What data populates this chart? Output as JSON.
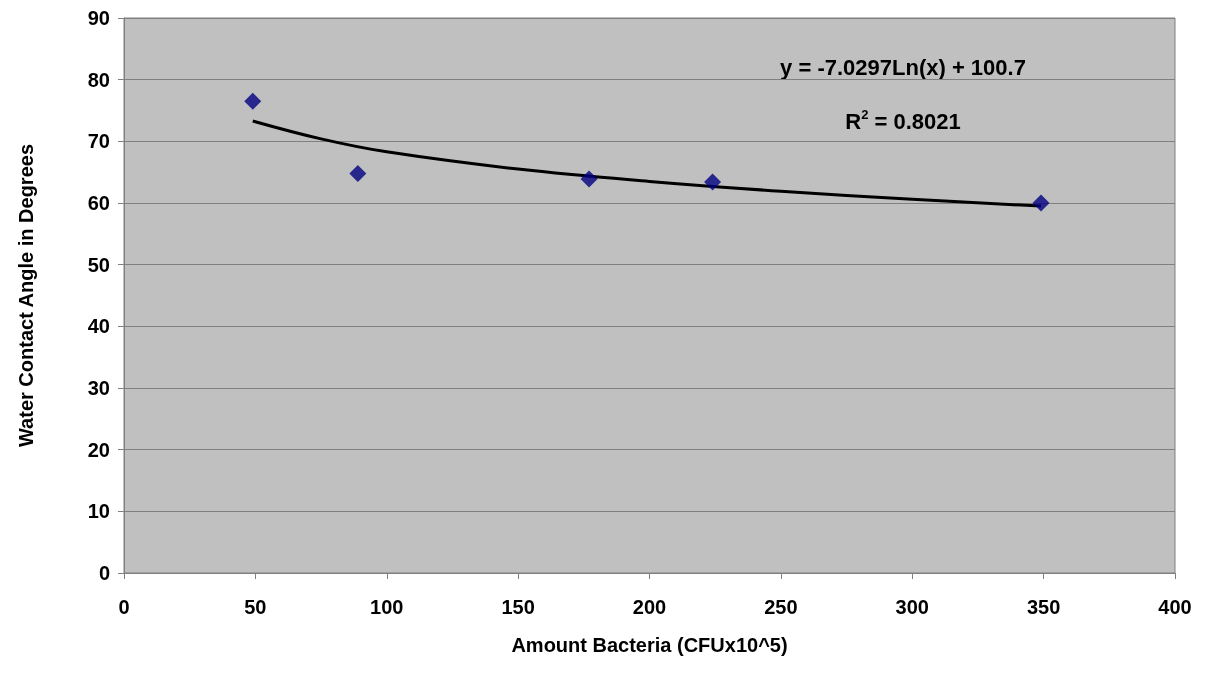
{
  "chart_data": {
    "type": "scatter",
    "xlabel": "Amount Bacteria (CFUx10^5)",
    "ylabel": "Water Contact Angle in Degrees",
    "annotations": [
      "y = -7.0297Ln(x) + 100.7",
      "R$^{2}$ = 0.8021"
    ],
    "series": [
      {
        "color": "#000080",
        "marker": "diamond",
        "x": [
          49,
          89,
          177,
          224,
          349
        ],
        "values": [
          76.5,
          64.8,
          63.9,
          63.4,
          60.0
        ]
      },
      {
        "type": "line",
        "color": "#000000",
        "marker": "none",
        "line_style": "solid",
        "x": [
          49,
          75,
          100,
          150,
          200,
          250,
          300,
          349
        ],
        "values": [
          73.3,
          70.4,
          68.3,
          65.5,
          63.5,
          61.9,
          60.6,
          59.5
        ]
      }
    ],
    "xlim": [
      0,
      400
    ],
    "xticks": [
      0,
      50,
      100,
      150,
      200,
      250,
      300,
      350,
      400
    ],
    "ylim": [
      0,
      90
    ],
    "yticks": [
      0,
      10,
      20,
      30,
      40,
      50,
      60,
      70,
      80,
      90
    ],
    "grid": "y"
  }
}
